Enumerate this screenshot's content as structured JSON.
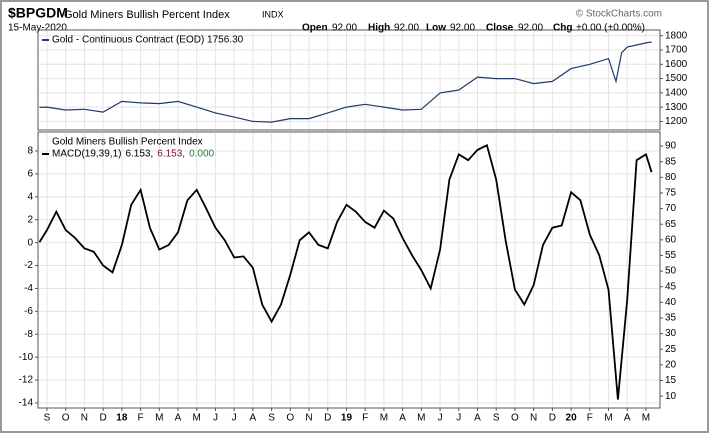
{
  "header": {
    "symbol": "$BPGDM",
    "name": "Gold Miners Bullish Percent Index",
    "exchange": "INDX",
    "date": "15-May-2020",
    "copyright": "© StockCharts.com",
    "quote": [
      [
        "Open",
        "92.00"
      ],
      [
        "High",
        "92.00"
      ],
      [
        "Low",
        "92.00"
      ],
      [
        "Close",
        "92.00"
      ],
      [
        "Chg",
        "+0.00 (+0.00%)"
      ]
    ]
  },
  "chart_data": [
    {
      "type": "line",
      "y_axis_side": "right",
      "grid": true,
      "series": [
        {
          "name": "Gold - Continuous Contract (EOD) 1756.30",
          "color": "#1f3a6b",
          "x": [
            -0.4,
            0,
            1,
            2,
            3,
            4,
            5,
            6,
            7,
            8,
            9,
            10,
            11,
            12,
            13,
            14,
            15,
            16,
            17,
            18,
            19,
            20,
            21,
            22,
            23,
            24,
            25,
            26,
            27,
            28,
            29,
            30,
            30.4,
            30.7,
            31,
            32,
            32.3
          ],
          "values": [
            1298,
            1300,
            1280,
            1285,
            1265,
            1340,
            1330,
            1325,
            1340,
            1300,
            1260,
            1230,
            1200,
            1195,
            1220,
            1220,
            1260,
            1300,
            1320,
            1300,
            1280,
            1285,
            1400,
            1420,
            1510,
            1500,
            1500,
            1465,
            1480,
            1570,
            1600,
            1640,
            1480,
            1680,
            1720,
            1750,
            1756.3
          ]
        }
      ],
      "xlim": [
        -0.48,
        32.75
      ],
      "ylim": [
        1140,
        1840
      ],
      "yticks": [
        1200,
        1300,
        1400,
        1500,
        1600,
        1700,
        1800
      ]
    },
    {
      "type": "line",
      "title": "Gold Miners Bullish Percent Index",
      "grid": true,
      "series": [
        {
          "name": "MACD(19,39,1)",
          "color": "#000000",
          "x": [
            -0.4,
            0,
            0.5,
            1,
            1.5,
            2,
            2.5,
            3,
            3.5,
            4,
            4.5,
            5,
            5.5,
            6,
            6.5,
            7,
            7.5,
            8,
            8.5,
            9,
            9.5,
            10,
            10.5,
            11,
            11.5,
            12,
            12.5,
            13,
            13.5,
            14,
            14.5,
            15,
            15.5,
            16,
            16.5,
            17,
            17.5,
            18,
            18.5,
            19,
            19.5,
            20,
            20.5,
            21,
            21.5,
            22,
            22.5,
            23,
            23.5,
            24,
            24.5,
            25,
            25.5,
            26,
            26.5,
            27,
            27.5,
            28,
            28.5,
            29,
            29.5,
            30,
            30.5,
            31,
            31.5,
            32,
            32.3
          ],
          "values": [
            0.05,
            1.1,
            2.7,
            1.1,
            0.4,
            -0.5,
            -0.8,
            -2,
            -2.6,
            -0.2,
            3.3,
            4.6,
            1.3,
            -0.6,
            -0.2,
            0.9,
            3.7,
            4.6,
            3.0,
            1.3,
            0.2,
            -1.3,
            -1.2,
            -2.2,
            -5.4,
            -6.9,
            -5.4,
            -2.8,
            0.2,
            0.9,
            -0.2,
            -0.5,
            1.8,
            3.3,
            2.7,
            1.8,
            1.3,
            2.8,
            2.1,
            0.4,
            -1.1,
            -2.4,
            -4.0,
            -0.6,
            5.5,
            7.7,
            7.2,
            8.1,
            8.5,
            5.5,
            0.2,
            -4.1,
            -5.4,
            -3.7,
            -0.2,
            1.3,
            1.5,
            4.4,
            3.7,
            0.7,
            -1.1,
            -4.1,
            -13.7,
            -5.0,
            7.2,
            7.7,
            6.153
          ]
        }
      ],
      "legend_values": [
        6.153,
        6.153,
        0.0
      ],
      "legend_value_labels": [
        "6.153,",
        "6.153,",
        "0.000"
      ],
      "legend_colors": [
        "#000000",
        "#7a1030",
        "#2e7d32"
      ],
      "xlim": [
        -0.48,
        32.75
      ],
      "ylim": [
        -14.44,
        9.66
      ],
      "yticks": [
        -14,
        -12,
        -10,
        -8,
        -6,
        -4,
        -2,
        0,
        2,
        4,
        6,
        8
      ],
      "y2lim": [
        6.2,
        94.5
      ],
      "y2ticks": [
        10,
        15,
        20,
        25,
        30,
        35,
        40,
        45,
        50,
        55,
        60,
        65,
        70,
        75,
        80,
        85,
        90
      ],
      "xticks": [
        {
          "value": 0,
          "label": "S"
        },
        {
          "value": 1,
          "label": "O"
        },
        {
          "value": 2,
          "label": "N"
        },
        {
          "value": 3,
          "label": "D"
        },
        {
          "value": 4,
          "label": "18"
        },
        {
          "value": 5,
          "label": "F"
        },
        {
          "value": 6,
          "label": "M"
        },
        {
          "value": 7,
          "label": "A"
        },
        {
          "value": 8,
          "label": "M"
        },
        {
          "value": 9,
          "label": "J"
        },
        {
          "value": 10,
          "label": "J"
        },
        {
          "value": 11,
          "label": "A"
        },
        {
          "value": 12,
          "label": "S"
        },
        {
          "value": 13,
          "label": "O"
        },
        {
          "value": 14,
          "label": "N"
        },
        {
          "value": 15,
          "label": "D"
        },
        {
          "value": 16,
          "label": "19"
        },
        {
          "value": 17,
          "label": "F"
        },
        {
          "value": 18,
          "label": "M"
        },
        {
          "value": 19,
          "label": "A"
        },
        {
          "value": 20,
          "label": "M"
        },
        {
          "value": 21,
          "label": "J"
        },
        {
          "value": 22,
          "label": "J"
        },
        {
          "value": 23,
          "label": "A"
        },
        {
          "value": 24,
          "label": "S"
        },
        {
          "value": 25,
          "label": "O"
        },
        {
          "value": 26,
          "label": "N"
        },
        {
          "value": 27,
          "label": "D"
        },
        {
          "value": 28,
          "label": "20"
        },
        {
          "value": 29,
          "label": "F"
        },
        {
          "value": 30,
          "label": "M"
        },
        {
          "value": 31,
          "label": "A"
        },
        {
          "value": 32,
          "label": "M"
        }
      ]
    }
  ]
}
